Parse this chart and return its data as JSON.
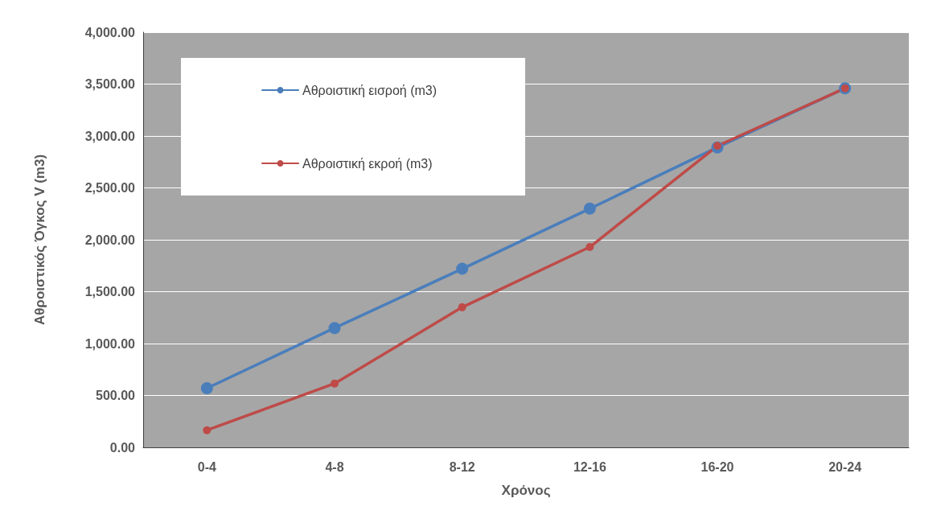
{
  "chart_data": {
    "type": "line",
    "xlabel": "Χρόνος",
    "ylabel": "Αθροιστικός Όγκος V (m3)",
    "categories": [
      "0-4",
      "4-8",
      "8-12",
      "12-16",
      "16-20",
      "20-24"
    ],
    "series": [
      {
        "name": "Αθροιστική εισροή (m3)",
        "color": "#4a7ebb",
        "values": [
          570,
          1150,
          1720,
          2300,
          2890,
          3460
        ]
      },
      {
        "name": "Αθροιστική εκροή (m3)",
        "color": "#be4b48",
        "values": [
          165,
          615,
          1350,
          1930,
          2905,
          3460
        ]
      }
    ],
    "ylim": [
      0,
      4000
    ],
    "yticks": [
      {
        "value": 0,
        "label": "0.00"
      },
      {
        "value": 500,
        "label": "500.00"
      },
      {
        "value": 1000,
        "label": "1,000.00"
      },
      {
        "value": 1500,
        "label": "1,500.00"
      },
      {
        "value": 2000,
        "label": "2,000.00"
      },
      {
        "value": 2500,
        "label": "2,500.00"
      },
      {
        "value": 3000,
        "label": "3,000.00"
      },
      {
        "value": 3500,
        "label": "3,500.00"
      },
      {
        "value": 4000,
        "label": "4,000.00"
      }
    ],
    "grid": "y",
    "legend": "top left",
    "marker": "circle",
    "line_style": "solid"
  }
}
